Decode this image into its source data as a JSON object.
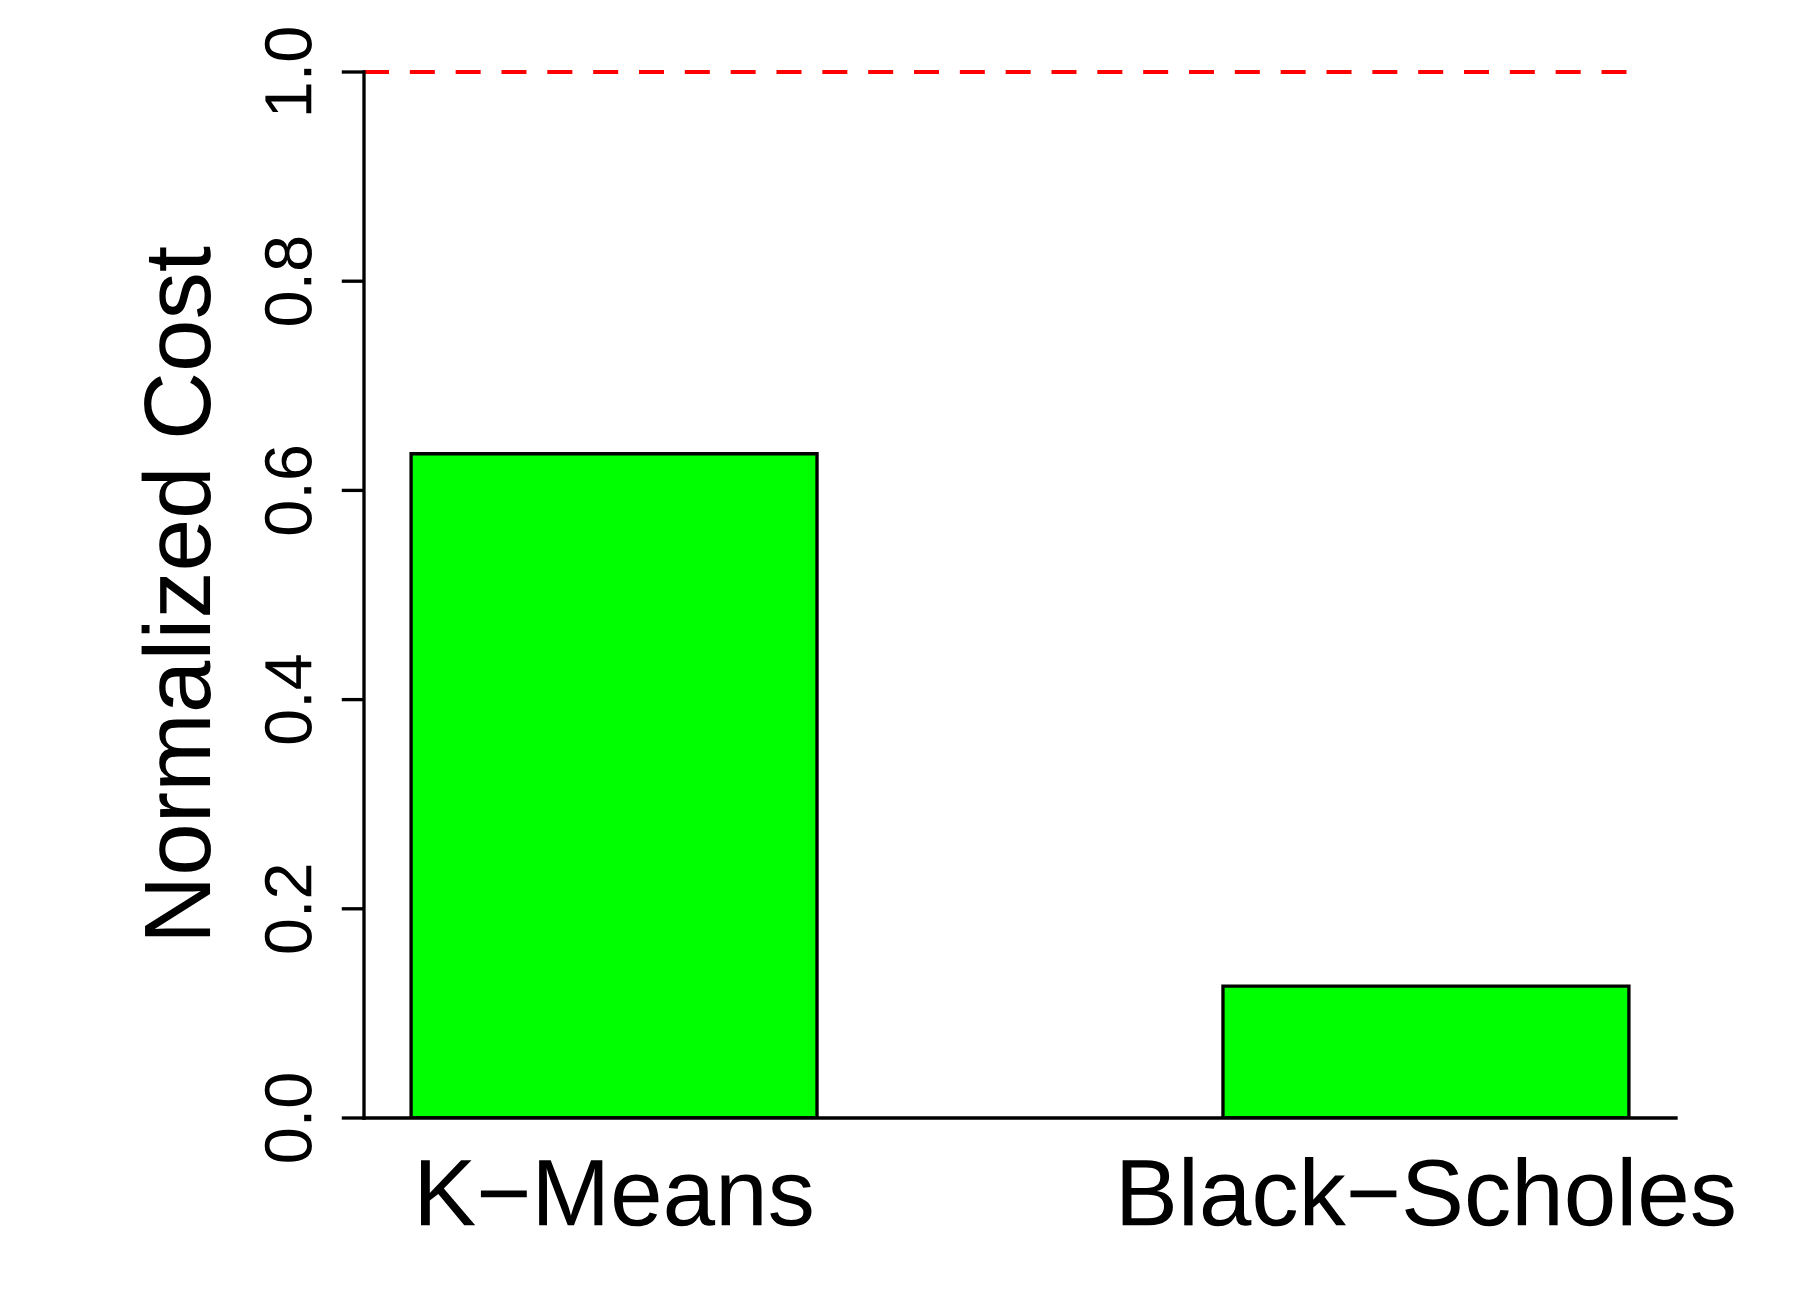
{
  "chart_data": {
    "type": "bar",
    "ylabel": "Normalized Cost",
    "categories": [
      "K−Means",
      "Black−Scholes"
    ],
    "values": [
      0.635,
      0.126
    ],
    "color": "#00ff00",
    "ylim": [
      0,
      1
    ],
    "yticks": [
      {
        "value": 0,
        "label": "0.0"
      },
      {
        "value": 0.2,
        "label": "0.2"
      },
      {
        "value": 0.4,
        "label": "0.4"
      },
      {
        "value": 0.6,
        "label": "0.6"
      },
      {
        "value": 0.8,
        "label": "0.8"
      },
      {
        "value": 1,
        "label": "1.0"
      }
    ],
    "ref_lines": [
      {
        "axis": "y",
        "value": 1,
        "color": "#ff0000",
        "line_style": "dashed"
      }
    ],
    "grid": false,
    "legend": false
  }
}
